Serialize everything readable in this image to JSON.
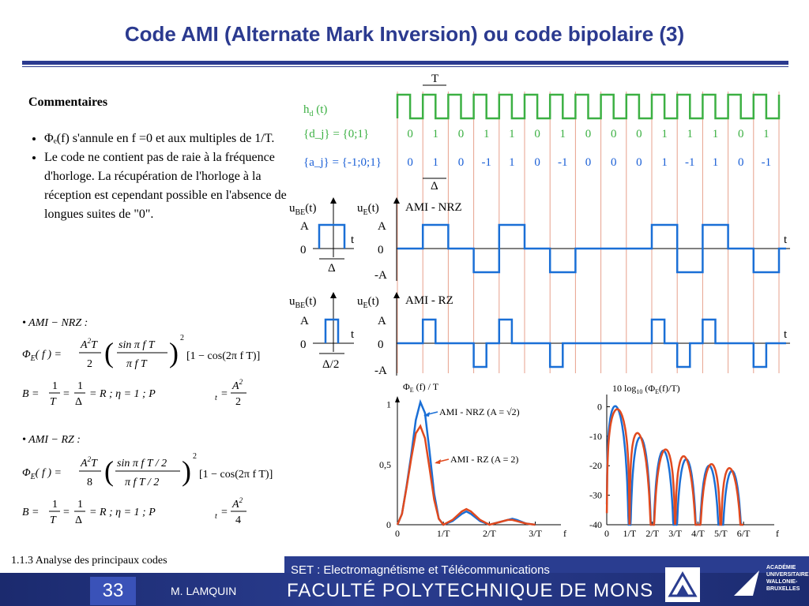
{
  "title": "Code AMI (Alternate Mark Inversion) ou code bipolaire (3)",
  "comments": {
    "heading": "Commentaires",
    "bullets": [
      "Φₑ(f) s'annule en f =0 et aux multiples de 1/T.",
      "Le code ne contient pas de raie à la fréquence d'horloge. La récupération de  l'horloge à la réception est cependant possible en l'absence de longues suites de \"0\"."
    ]
  },
  "formulas": {
    "nrz_label": "• AMI − NRZ    :",
    "nrz_spectrum": "Φ_E(f) = (A²T/2) · (sin πfT / πfT)² · [1 − cos(2πfT)]",
    "nrz_params": "B = 1/T = 1/Δ = R   ;   η = 1   ;   P_t = A²/2",
    "rz_label": "• AMI − RZ    :",
    "rz_spectrum": "Φ_E(f) = (A²T/8) · (sin πfT/2 / πfT/2)² · [1 − cos(2πfT)]",
    "rz_params": "B = 1/T = 1/Δ = R   ;   η = 1   ;   P_t = A²/4"
  },
  "timing": {
    "clock_label": "h_d (t)",
    "period_label": "T",
    "d_label": "{d_j} = {0;1}",
    "a_label": "{a_j} = {-1;0;1}",
    "d_values": [
      "0",
      "1",
      "0",
      "1",
      "1",
      "0",
      "1",
      "0",
      "0",
      "0",
      "1",
      "1",
      "1",
      "0",
      "1"
    ],
    "a_values": [
      "0",
      "1",
      "0",
      "-1",
      "1",
      "0",
      "-1",
      "0",
      "0",
      "0",
      "1",
      "-1",
      "1",
      "0",
      "-1"
    ],
    "delta_label": "Δ",
    "colors": {
      "clock": "#3cb043",
      "a_seq": "#1a5fd6",
      "signal": "#1a6fd6",
      "grid": "#e7a08c"
    }
  },
  "nrz": {
    "ube_label": "u_BE(t)",
    "ue_label": "u_E(t)",
    "name": "AMI - NRZ",
    "amp_label": "A",
    "zero_label": "0",
    "neg_label": "-A",
    "t_label": "t",
    "delta_label": "Δ"
  },
  "rz": {
    "ube_label": "u_BE(t)",
    "ue_label": "u_E(t)",
    "name": "AMI - RZ",
    "amp_label": "A",
    "zero_label": "0",
    "neg_label": "-A",
    "t_label": "t",
    "delta_label": "Δ/2"
  },
  "chart_data": [
    {
      "type": "line",
      "title": "Φ_E (f) / T",
      "xlabel": "f",
      "xticks": [
        "0",
        "1/T",
        "2/T",
        "3/T"
      ],
      "yticks": [
        "0",
        "0,5",
        "1"
      ],
      "ylim": [
        0,
        1.05
      ],
      "xlim": [
        0,
        3.3
      ],
      "series": [
        {
          "name": "AMI - NRZ (A = √2)",
          "color": "#1a6fd6",
          "x": [
            0,
            0.1,
            0.2,
            0.3,
            0.4,
            0.5,
            0.6,
            0.7,
            0.8,
            0.9,
            1.0,
            1.2,
            1.4,
            1.5,
            1.6,
            1.8,
            2.0,
            2.2,
            2.4,
            2.5,
            2.6,
            2.8,
            3.0
          ],
          "y": [
            0,
            0.09,
            0.32,
            0.58,
            0.87,
            1.02,
            0.93,
            0.61,
            0.26,
            0.05,
            0,
            0.03,
            0.09,
            0.11,
            0.09,
            0.03,
            0,
            0.02,
            0.04,
            0.05,
            0.04,
            0.01,
            0
          ]
        },
        {
          "name": "AMI - RZ (A = 2)",
          "color": "#e04a1f",
          "x": [
            0,
            0.1,
            0.2,
            0.3,
            0.4,
            0.5,
            0.6,
            0.7,
            0.8,
            0.9,
            1.0,
            1.2,
            1.4,
            1.5,
            1.6,
            1.8,
            2.0,
            2.2,
            2.4,
            2.5,
            2.6,
            2.8,
            3.0
          ],
          "y": [
            0,
            0.09,
            0.31,
            0.55,
            0.76,
            0.82,
            0.72,
            0.47,
            0.21,
            0.05,
            0,
            0.04,
            0.11,
            0.13,
            0.11,
            0.04,
            0,
            0.02,
            0.04,
            0.04,
            0.03,
            0.01,
            0
          ]
        }
      ]
    },
    {
      "type": "line",
      "title": "10 log10 (Φ_E(f)/T)",
      "xlabel": "f",
      "xticks": [
        "0",
        "1/T",
        "2/T",
        "3/T",
        "4/T",
        "5/T",
        "6/T"
      ],
      "yticks": [
        "0",
        "-10",
        "-20",
        "-30",
        "-40"
      ],
      "ylim": [
        -40,
        2
      ],
      "xlim": [
        0,
        7
      ],
      "series": [
        {
          "name": "AMI - NRZ",
          "color": "#1a6fd6"
        },
        {
          "name": "AMI - RZ",
          "color": "#e04a1f"
        }
      ]
    }
  ],
  "footer": {
    "section": "1.1.3  Analyse des principaux codes",
    "course": "SET : Electromagnétisme et Télécommunications",
    "page": "33",
    "author": "M. LAMQUIN",
    "faculty": "FACULTÉ POLYTECHNIQUE DE MONS",
    "academy": [
      "ACADÉMIE",
      "UNIVERSITAIRE",
      "WALLONIE-",
      "BRUXELLES"
    ]
  }
}
